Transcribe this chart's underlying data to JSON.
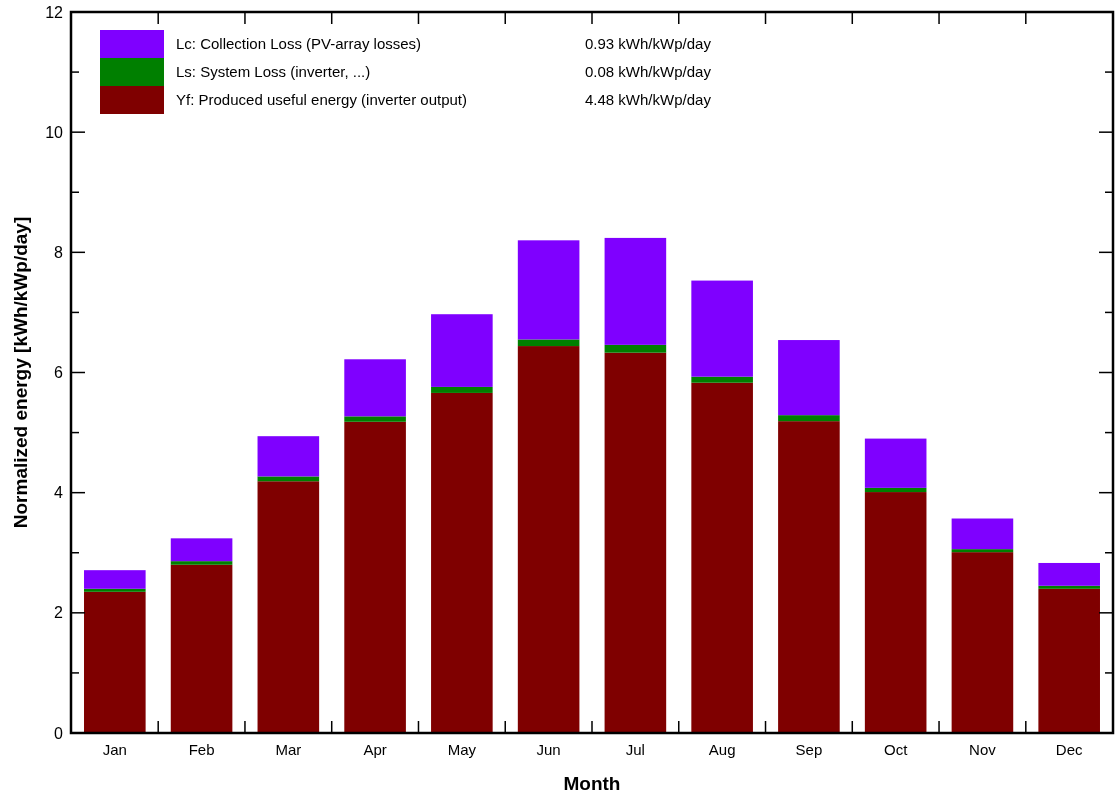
{
  "chart_data": {
    "type": "bar",
    "stacked": true,
    "xlabel": "Month",
    "ylabel": "Normalized energy [kWh/kWp/day]",
    "categories": [
      "Jan",
      "Feb",
      "Mar",
      "Apr",
      "May",
      "Jun",
      "Jul",
      "Aug",
      "Sep",
      "Oct",
      "Nov",
      "Dec"
    ],
    "series": [
      {
        "name": "Yf: Produced useful energy  (inverter output)",
        "color": "#7f0000",
        "values": [
          2.35,
          2.8,
          4.19,
          5.18,
          5.66,
          6.44,
          6.33,
          5.83,
          5.19,
          4.01,
          3.01,
          2.4
        ]
      },
      {
        "name": "Ls: System Loss  (inverter, ...)",
        "color": "#007f00",
        "values": [
          0.05,
          0.06,
          0.08,
          0.09,
          0.1,
          0.11,
          0.13,
          0.1,
          0.1,
          0.07,
          0.05,
          0.05
        ]
      },
      {
        "name": "Lc: Collection Loss (PV-array losses)",
        "color": "#7f00ff",
        "values": [
          0.31,
          0.38,
          0.67,
          0.95,
          1.21,
          1.65,
          1.78,
          1.6,
          1.25,
          0.82,
          0.51,
          0.38
        ]
      }
    ],
    "annotations": [
      "4.48 kWh/kWp/day",
      "0.08 kWh/kWp/day",
      "0.93 kWh/kWp/day"
    ],
    "ylim": [
      0,
      12
    ],
    "yticks": [
      0,
      {
        "value": 1,
        "label": null
      },
      2,
      {
        "value": 3,
        "label": null
      },
      4,
      {
        "value": 5,
        "label": null
      },
      6,
      {
        "value": 7,
        "label": null
      },
      8,
      {
        "value": 9,
        "label": null
      },
      10,
      {
        "value": 11,
        "label": null
      },
      12
    ],
    "legend": "top left",
    "grid": false
  }
}
